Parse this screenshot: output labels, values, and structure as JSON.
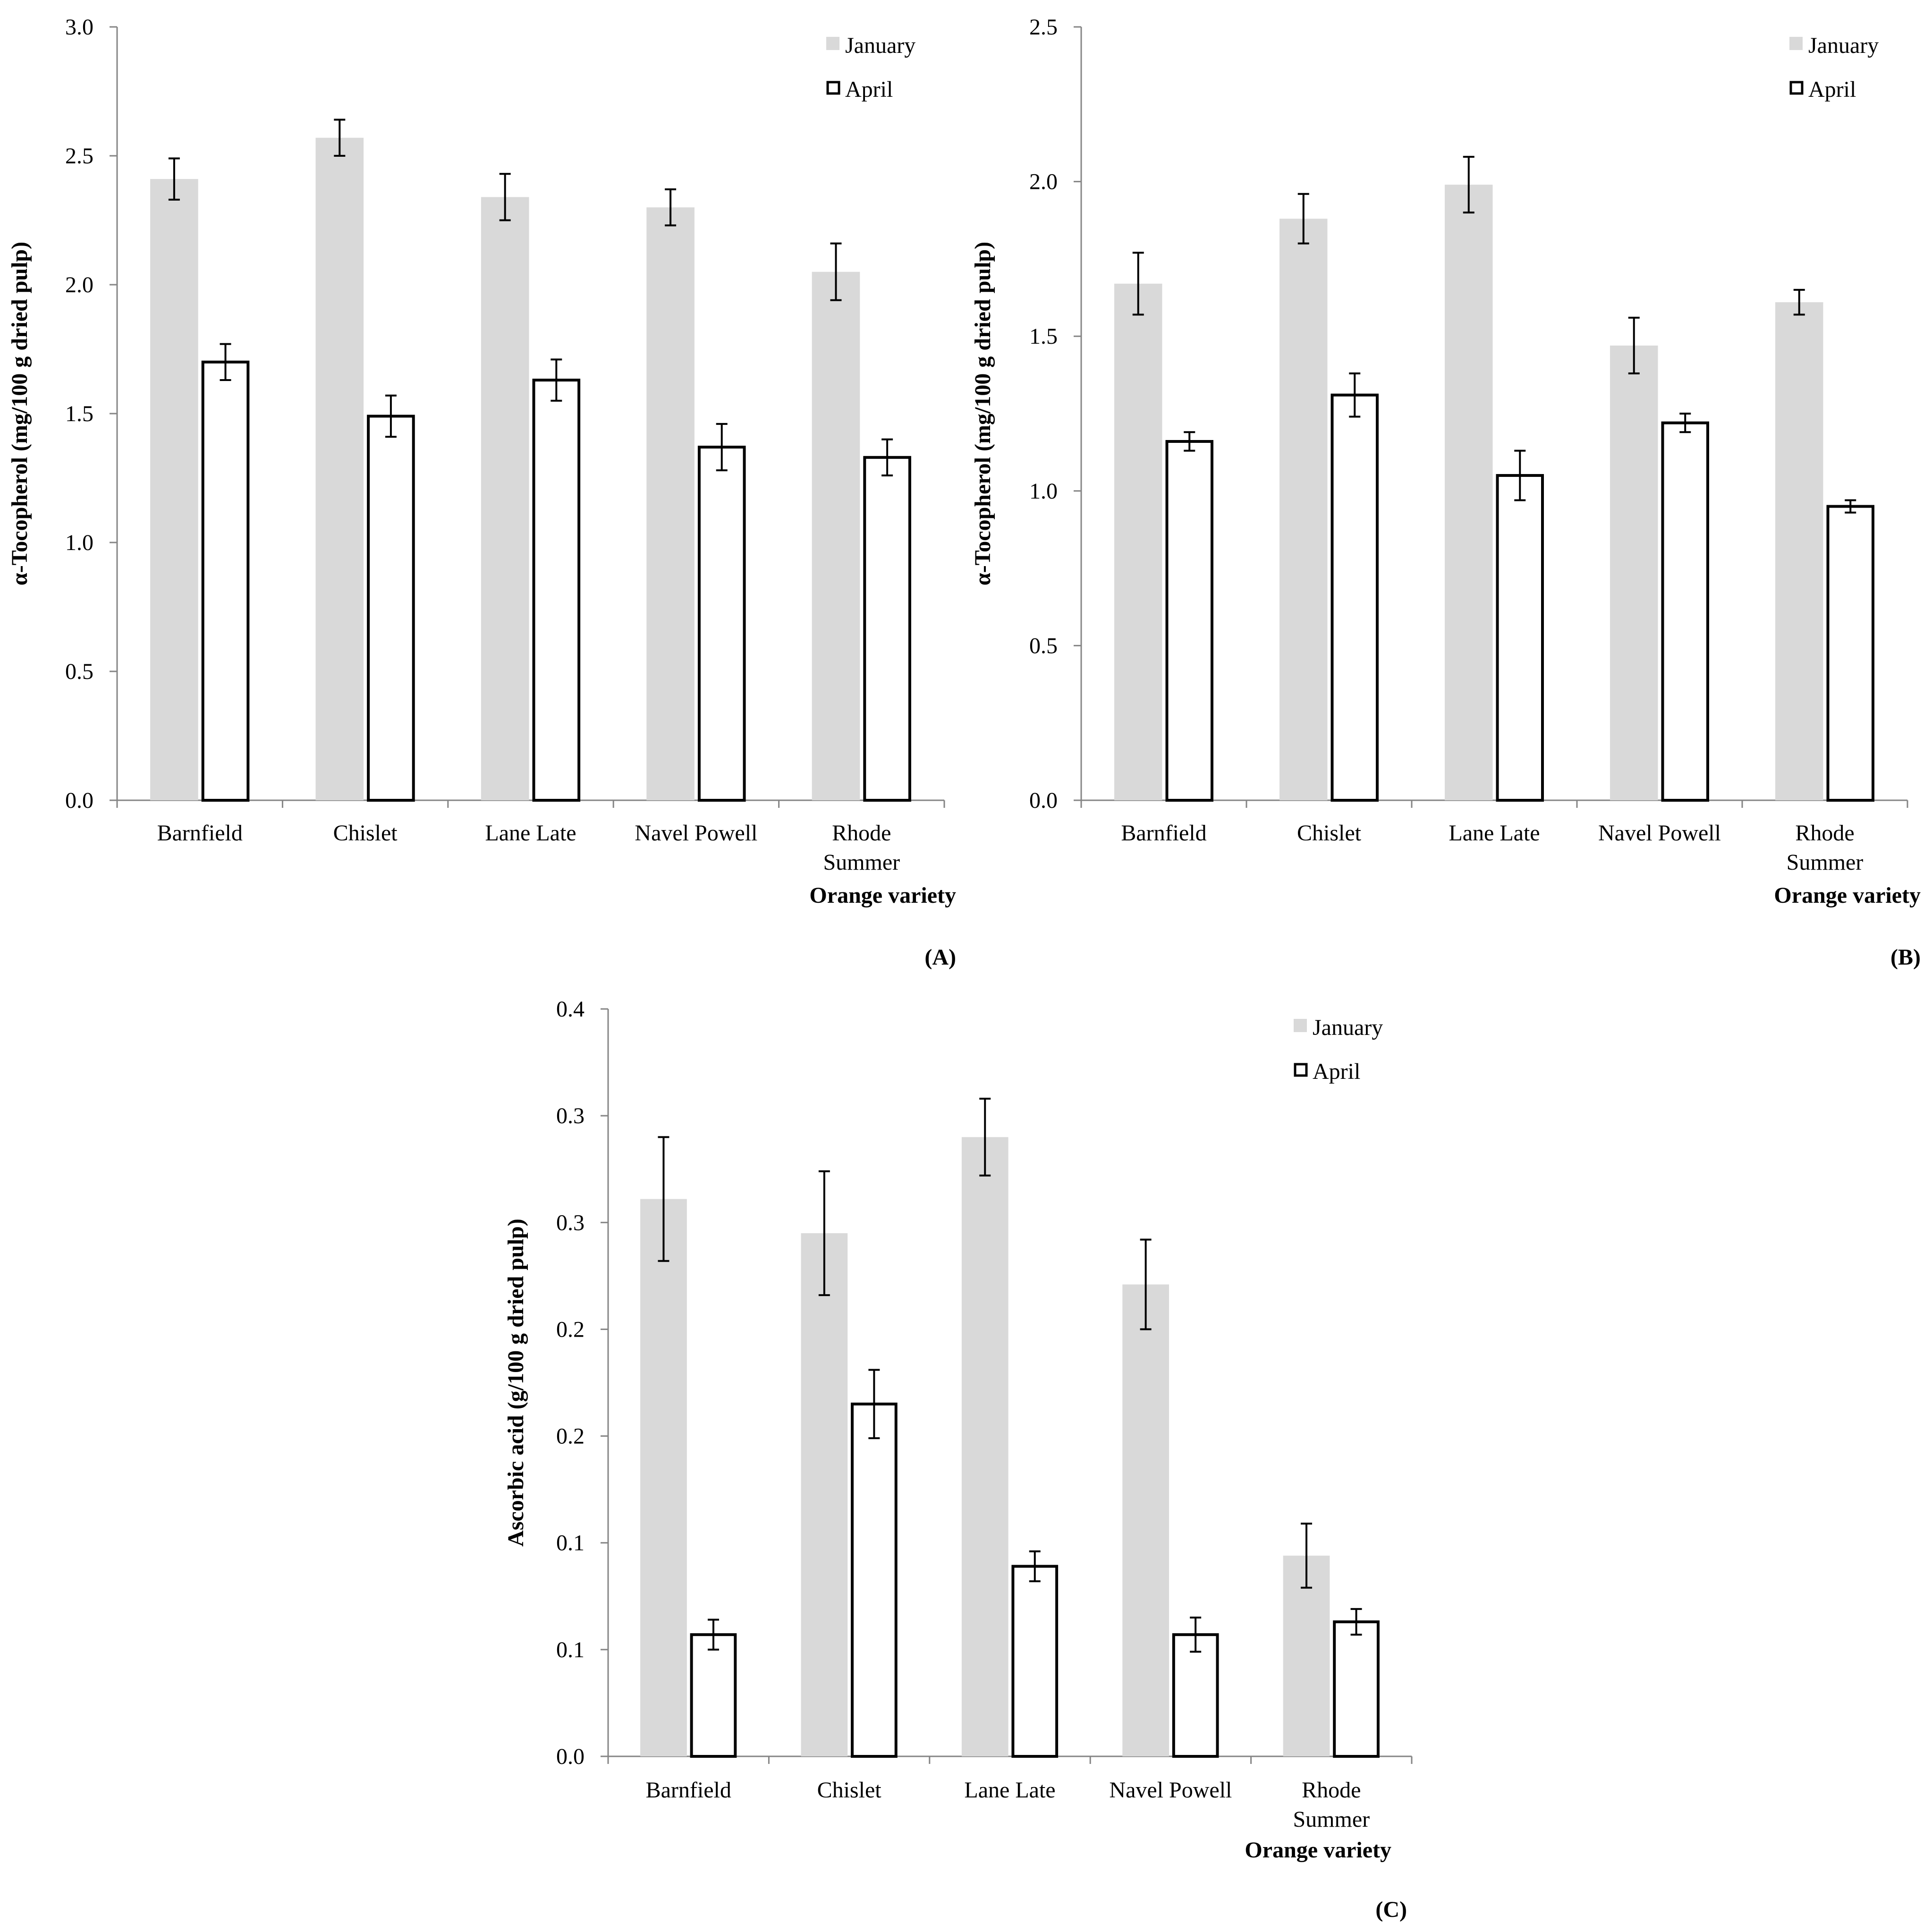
{
  "chart_data": [
    {
      "type": "bar",
      "panel_label": "(A)",
      "categories": [
        "Barnfield",
        "Chislet",
        "Lane Late",
        "Navel Powell",
        "Rhode Summer"
      ],
      "series": [
        {
          "name": "January",
          "color": "#d9d9d9",
          "style": "filled",
          "values": [
            2.41,
            2.57,
            2.34,
            2.3,
            2.05
          ],
          "errors": [
            0.08,
            0.07,
            0.09,
            0.07,
            0.11
          ]
        },
        {
          "name": "April",
          "color": "#ffffff",
          "style": "outlined",
          "values": [
            1.7,
            1.49,
            1.63,
            1.37,
            1.33
          ],
          "errors": [
            0.07,
            0.08,
            0.08,
            0.09,
            0.07
          ]
        }
      ],
      "title": "",
      "xlabel": "Orange variety",
      "ylabel": "α-Tocopherol (mg/100 g dried pulp)",
      "ylim": [
        0,
        3.0
      ],
      "yticks": [
        "0.0",
        "0.5",
        "1.0",
        "1.5",
        "2.0",
        "2.5",
        "3.0"
      ],
      "legend_position": "top-right"
    },
    {
      "type": "bar",
      "panel_label": "(B)",
      "categories": [
        "Barnfield",
        "Chislet",
        "Lane Late",
        "Navel Powell",
        "Rhode Summer"
      ],
      "series": [
        {
          "name": "January",
          "color": "#d9d9d9",
          "style": "filled",
          "values": [
            1.67,
            1.88,
            1.99,
            1.47,
            1.61
          ],
          "errors": [
            0.1,
            0.08,
            0.09,
            0.09,
            0.04
          ]
        },
        {
          "name": "April",
          "color": "#ffffff",
          "style": "outlined",
          "values": [
            1.16,
            1.31,
            1.05,
            1.22,
            0.95
          ],
          "errors": [
            0.03,
            0.07,
            0.08,
            0.03,
            0.02
          ]
        }
      ],
      "title": "",
      "xlabel": "Orange variety",
      "ylabel": "α-Tocopherol (mg/100 g dried pulp)",
      "ylim": [
        0,
        2.5
      ],
      "yticks": [
        "0.0",
        "0.5",
        "1.0",
        "1.5",
        "2.0",
        "2.5"
      ],
      "legend_position": "top-right"
    },
    {
      "type": "bar",
      "panel_label": "(C)",
      "categories": [
        "Barnfield",
        "Chislet",
        "Lane Late",
        "Navel Powell",
        "Rhode Summer"
      ],
      "series": [
        {
          "name": "January",
          "color": "#d9d9d9",
          "style": "filled",
          "values": [
            0.261,
            0.245,
            0.29,
            0.221,
            0.094
          ],
          "errors": [
            0.029,
            0.029,
            0.018,
            0.021,
            0.015
          ]
        },
        {
          "name": "April",
          "color": "#ffffff",
          "style": "outlined",
          "values": [
            0.057,
            0.165,
            0.089,
            0.057,
            0.063
          ],
          "errors": [
            0.007,
            0.016,
            0.007,
            0.008,
            0.006
          ]
        }
      ],
      "title": "",
      "xlabel": "Orange variety",
      "ylabel": "Ascorbic acid (g/100 g dried pulp)",
      "ylim": [
        0,
        0.35
      ],
      "yticks": [
        "0.0",
        "0.1",
        "0.1",
        "0.2",
        "0.2",
        "0.3",
        "0.3",
        "0.4"
      ],
      "legend_position": "top-right"
    }
  ]
}
